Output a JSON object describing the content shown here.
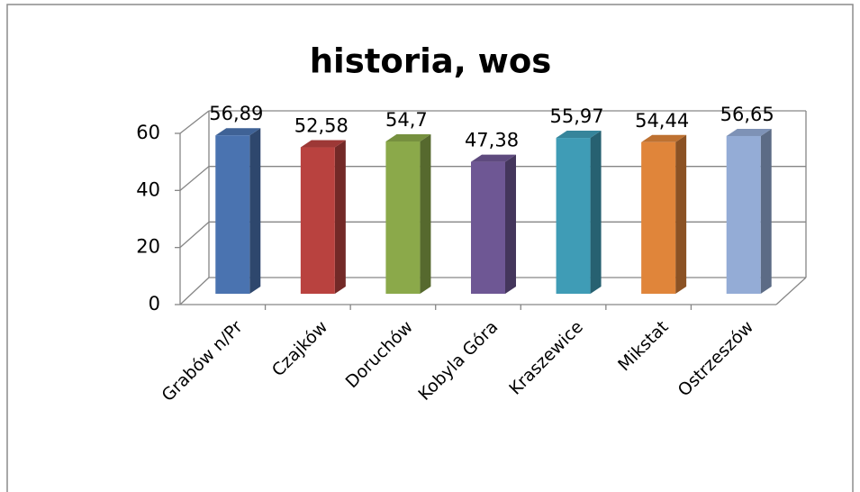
{
  "chart_data": {
    "type": "bar3d",
    "title": "historia, wos",
    "categories": [
      "Grabów n/Pr",
      "Czajków",
      "Doruchów",
      "Kobyla Góra",
      "Kraszewice",
      "Mikstat",
      "Ostrzeszów"
    ],
    "values": [
      56.89,
      52.58,
      54.7,
      47.38,
      55.97,
      54.44,
      56.65
    ],
    "value_labels": [
      "56,89",
      "52,58",
      "54,7",
      "47,38",
      "55,97",
      "54,44",
      "56,65"
    ],
    "colors": [
      "#4a73b0",
      "#b9423f",
      "#8ba94a",
      "#6e5794",
      "#3f9cb6",
      "#e0853a",
      "#94acd6"
    ],
    "ylim": [
      0,
      60
    ],
    "yticks": [
      0,
      20,
      40,
      60
    ],
    "grid": true
  }
}
